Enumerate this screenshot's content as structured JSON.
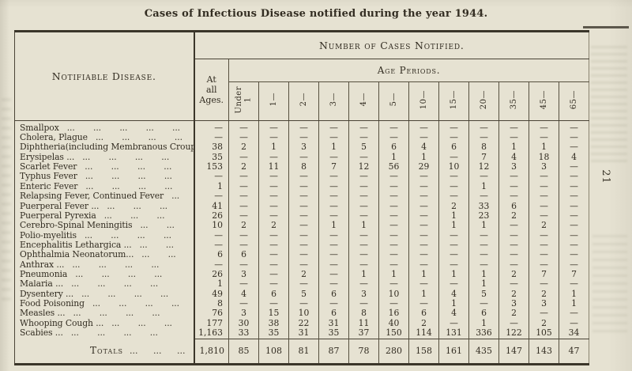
{
  "page": {
    "title": "Cases of Infectious Disease notified during the year 1944.",
    "page_number": "21"
  },
  "table": {
    "headers": {
      "disease": "Notifiable Disease.",
      "cases": "Number of Cases Notified.",
      "at_all_ages": "At\nall\nAges.",
      "age_periods": "Age Periods.",
      "age_columns": [
        "Under\n1",
        "1—",
        "2—",
        "3—",
        "4—",
        "5—",
        "10—",
        "15—",
        "20—",
        "35—",
        "45—",
        "65—"
      ]
    },
    "rows": [
      {
        "name": "Smallpox",
        "dots": "... ... ... ... ...",
        "values": [
          "—",
          "—",
          "—",
          "—",
          "—",
          "—",
          "—",
          "—",
          "—",
          "—",
          "—",
          "—",
          "—"
        ]
      },
      {
        "name": "Cholera, Plague",
        "dots": "... ... ... ...",
        "values": [
          "—",
          "—",
          "—",
          "—",
          "—",
          "—",
          "—",
          "—",
          "—",
          "—",
          "—",
          "—",
          "—"
        ]
      },
      {
        "name": "Diphtheria(including Membranous Croup)",
        "dots": "",
        "values": [
          "38",
          "2",
          "1",
          "3",
          "1",
          "5",
          "6",
          "4",
          "6",
          "8",
          "1",
          "1",
          "—"
        ]
      },
      {
        "name": "Erysipelas ...",
        "dots": "... ... ... ...",
        "values": [
          "35",
          "—",
          "—",
          "—",
          "—",
          "—",
          "1",
          "1",
          "—",
          "7",
          "4",
          "18",
          "4"
        ]
      },
      {
        "name": "Scarlet Fever",
        "dots": "... ... ... ...",
        "values": [
          "153",
          "2",
          "11",
          "8",
          "7",
          "12",
          "56",
          "29",
          "10",
          "12",
          "3",
          "3",
          "—"
        ]
      },
      {
        "name": "Typhus Fever",
        "dots": "... ... ... ...",
        "values": [
          "—",
          "—",
          "—",
          "—",
          "—",
          "—",
          "—",
          "—",
          "—",
          "—",
          "—",
          "—",
          "—"
        ]
      },
      {
        "name": "Enteric Fever",
        "dots": "... ... ... ...",
        "values": [
          "1",
          "—",
          "—",
          "—",
          "—",
          "—",
          "—",
          "—",
          "—",
          "1",
          "—",
          "—",
          "—"
        ]
      },
      {
        "name": "Relapsing Fever, Continued Fever",
        "dots": "...",
        "values": [
          "—",
          "—",
          "—",
          "—",
          "—",
          "—",
          "—",
          "—",
          "—",
          "—",
          "—",
          "—",
          "—"
        ]
      },
      {
        "name": "Puerperal Fever ...",
        "dots": "... ... ...",
        "values": [
          "41",
          "—",
          "—",
          "—",
          "—",
          "—",
          "—",
          "—",
          "2",
          "33",
          "6",
          "—",
          "—"
        ]
      },
      {
        "name": "Puerperal Pyrexia",
        "dots": "... ... ...",
        "values": [
          "26",
          "—",
          "—",
          "—",
          "—",
          "—",
          "—",
          "—",
          "1",
          "23",
          "2",
          "—",
          "—"
        ]
      },
      {
        "name": "Cerebro-Spinal Meningitis",
        "dots": "... ...",
        "values": [
          "10",
          "2",
          "2",
          "—",
          "1",
          "1",
          "—",
          "—",
          "1",
          "1",
          "—",
          "2",
          "—"
        ]
      },
      {
        "name": "Polio-myelitis",
        "dots": "... ... ... ...",
        "values": [
          "—",
          "—",
          "—",
          "—",
          "—",
          "—",
          "—",
          "—",
          "—",
          "—",
          "—",
          "—",
          "—"
        ]
      },
      {
        "name": "Encephalitis Lethargica ...",
        "dots": "... ...",
        "values": [
          "—",
          "—",
          "—",
          "—",
          "—",
          "—",
          "—",
          "—",
          "—",
          "—",
          "—",
          "—",
          "—"
        ]
      },
      {
        "name": "Ophthalmia Neonatorum...",
        "dots": "... ...",
        "values": [
          "6",
          "6",
          "—",
          "—",
          "—",
          "—",
          "—",
          "—",
          "—",
          "—",
          "—",
          "—",
          "—"
        ]
      },
      {
        "name": "Anthrax ...",
        "dots": "... ... ... ...",
        "values": [
          "—",
          "—",
          "—",
          "—",
          "—",
          "—",
          "—",
          "—",
          "—",
          "—",
          "—",
          "—",
          "—"
        ]
      },
      {
        "name": "Pneumonia",
        "dots": "... ... ... ...",
        "values": [
          "26",
          "3",
          "—",
          "2",
          "—",
          "1",
          "1",
          "1",
          "1",
          "1",
          "2",
          "7",
          "7"
        ]
      },
      {
        "name": "Malaria ...",
        "dots": "... ... ... ...",
        "values": [
          "1",
          "—",
          "—",
          "—",
          "—",
          "—",
          "—",
          "—",
          "—",
          "1",
          "—",
          "—",
          "—"
        ]
      },
      {
        "name": "Dysentery ...",
        "dots": "... ... ... ...",
        "values": [
          "49",
          "4",
          "6",
          "5",
          "6",
          "3",
          "10",
          "1",
          "4",
          "5",
          "2",
          "2",
          "1"
        ]
      },
      {
        "name": "Food Poisoning",
        "dots": "... ... ... ...",
        "values": [
          "8",
          "—",
          "—",
          "—",
          "—",
          "—",
          "—",
          "—",
          "1",
          "—",
          "3",
          "3",
          "1"
        ]
      },
      {
        "name": "Measles ...",
        "dots": "... ... ... ...",
        "values": [
          "76",
          "3",
          "15",
          "10",
          "6",
          "8",
          "16",
          "6",
          "4",
          "6",
          "2",
          "—",
          "—"
        ]
      },
      {
        "name": "Whooping Cough ...",
        "dots": "... ... ...",
        "values": [
          "177",
          "30",
          "38",
          "22",
          "31",
          "11",
          "40",
          "2",
          "—",
          "1",
          "—",
          "2",
          "—"
        ]
      },
      {
        "name": "Scabies ...",
        "dots": "... ... ... ...",
        "values": [
          "1,163",
          "33",
          "35",
          "31",
          "35",
          "37",
          "150",
          "114",
          "131",
          "336",
          "122",
          "105",
          "34"
        ]
      }
    ],
    "totals": {
      "label": "Totals",
      "dots": "... ... ...",
      "values": [
        "1,810",
        "85",
        "108",
        "81",
        "87",
        "78",
        "280",
        "158",
        "161",
        "435",
        "147",
        "143",
        "47"
      ]
    }
  }
}
